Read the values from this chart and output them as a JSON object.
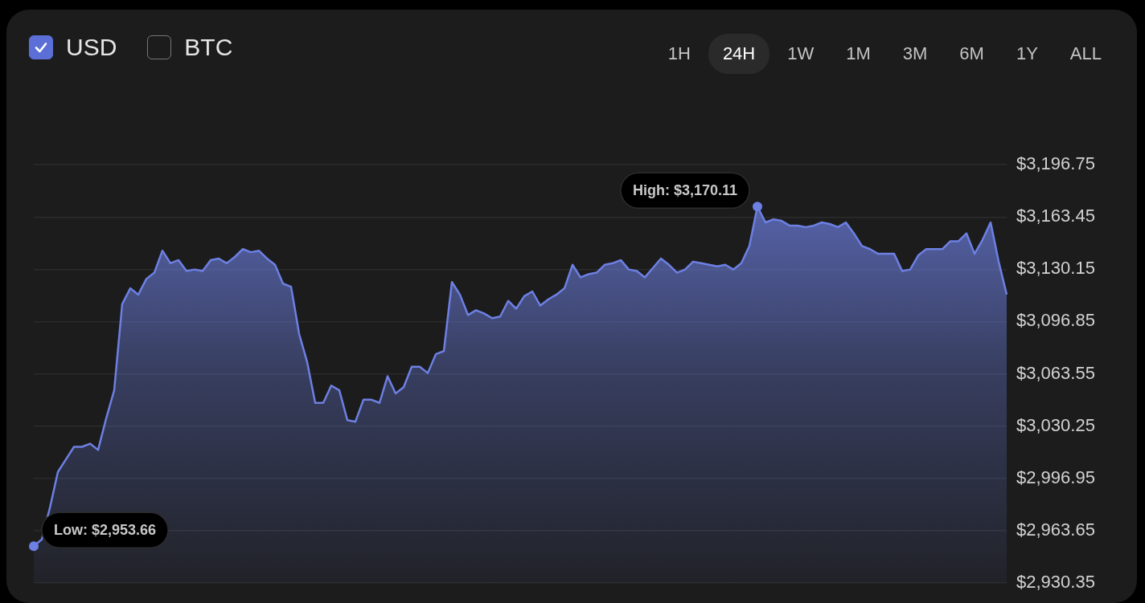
{
  "chart_data": {
    "type": "area",
    "categories": [
      null,
      null,
      null,
      null,
      null,
      null,
      null,
      null,
      null,
      null,
      null,
      null,
      null,
      null,
      null,
      null,
      null,
      null,
      null,
      null,
      null,
      null,
      null,
      null,
      null,
      null,
      null,
      null,
      null,
      null,
      null,
      null,
      null,
      null,
      null,
      null,
      null,
      null,
      null,
      null,
      null,
      null,
      null,
      null,
      null,
      null,
      null,
      null,
      null,
      null,
      null,
      null,
      null,
      null,
      null,
      null,
      null,
      null,
      null,
      null,
      null,
      null,
      null,
      null,
      null,
      null,
      null,
      null,
      null,
      null,
      null,
      null,
      null,
      null,
      null,
      null,
      null,
      null,
      null,
      null,
      null,
      null,
      null,
      null,
      null,
      null,
      null,
      null,
      null,
      null,
      null,
      null,
      null,
      null,
      null,
      null,
      null,
      null,
      null,
      null,
      null,
      null,
      null,
      null,
      null,
      null,
      null,
      null,
      null,
      null,
      null,
      null,
      null,
      null,
      null,
      null,
      null,
      null,
      null,
      null,
      null,
      null
    ],
    "series": [
      {
        "color": "#6d80e3",
        "value_labels": [
          "Low: $2,953.66",
          null,
          null,
          null,
          null,
          null,
          null,
          null,
          null,
          null,
          null,
          null,
          null,
          null,
          null,
          null,
          null,
          null,
          null,
          null,
          null,
          null,
          null,
          null,
          null,
          null,
          null,
          null,
          null,
          null,
          null,
          null,
          null,
          null,
          null,
          null,
          null,
          null,
          null,
          null,
          null,
          null,
          null,
          null,
          null,
          null,
          null,
          null,
          null,
          null,
          null,
          null,
          null,
          null,
          null,
          null,
          null,
          null,
          null,
          null,
          null,
          null,
          null,
          null,
          null,
          null,
          null,
          null,
          null,
          null,
          null,
          null,
          null,
          null,
          null,
          null,
          null,
          null,
          null,
          null,
          null,
          null,
          null,
          null,
          null,
          null,
          null,
          null,
          null,
          null,
          "High: $3,170.11",
          null,
          null,
          null,
          null,
          null,
          null,
          null,
          null,
          null,
          null,
          null,
          null,
          null,
          null,
          null,
          null,
          null,
          null,
          null,
          null,
          null,
          null,
          null,
          null,
          null,
          null,
          null,
          null,
          null,
          null,
          null
        ],
        "values": [
          2953.66,
          2958,
          2978,
          3001,
          3009,
          3017,
          3017,
          3019,
          3015,
          3035,
          3053,
          3108,
          3118,
          3114,
          3124,
          3128,
          3142,
          3134,
          3136,
          3129,
          3130,
          3129,
          3136,
          3137,
          3134,
          3138,
          3143,
          3141,
          3142,
          3137,
          3133,
          3121,
          3119,
          3089,
          3071,
          3045,
          3045,
          3056,
          3053,
          3034,
          3033,
          3047,
          3047,
          3045,
          3062,
          3051,
          3055,
          3068,
          3068,
          3064,
          3076,
          3078,
          3122,
          3114,
          3101,
          3104,
          3102,
          3099,
          3100,
          3110,
          3105,
          3113,
          3116,
          3107,
          3111,
          3114,
          3118,
          3133,
          3125,
          3127,
          3128,
          3133,
          3134,
          3136,
          3130,
          3129,
          3125,
          3131,
          3137,
          3133,
          3128,
          3130,
          3135,
          3134,
          3133,
          3132,
          3133,
          3130,
          3134,
          3145,
          3170.11,
          3160,
          3162,
          3161,
          3158,
          3158,
          3157,
          3158,
          3160,
          3159,
          3157,
          3160,
          3153,
          3145,
          3143,
          3140,
          3140,
          3140,
          3129,
          3130,
          3139,
          3143,
          3143,
          3143,
          3148,
          3148,
          3153,
          3140,
          3149,
          3160,
          3135,
          3114
        ]
      }
    ],
    "ylim": [
      2930.35,
      3196.75
    ],
    "yticks": [
      {
        "value": 2930.35,
        "label": "$2,930.35"
      },
      {
        "value": 2963.65,
        "label": "$2,963.65"
      },
      {
        "value": 2996.95,
        "label": "$2,996.95"
      },
      {
        "value": 3030.25,
        "label": "$3,030.25"
      },
      {
        "value": 3063.55,
        "label": "$3,063.55"
      },
      {
        "value": 3096.85,
        "label": "$3,096.85"
      },
      {
        "value": 3130.15,
        "label": "$3,130.15"
      },
      {
        "value": 3163.45,
        "label": "$3,163.45"
      },
      {
        "value": 3196.75,
        "label": "$3,196.75"
      }
    ],
    "grid": "y",
    "marker": "none",
    "line_style": "solid",
    "annotations": [
      "USD",
      "BTC",
      "1H",
      "24H",
      "1W",
      "1M",
      "3M",
      "6M",
      "1Y",
      "ALL"
    ]
  }
}
